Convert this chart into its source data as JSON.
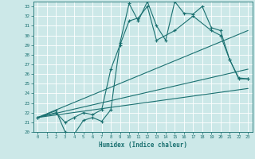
{
  "xlabel": "Humidex (Indice chaleur)",
  "xlim": [
    -0.5,
    23.5
  ],
  "ylim": [
    20,
    33.5
  ],
  "yticks": [
    20,
    21,
    22,
    23,
    24,
    25,
    26,
    27,
    28,
    29,
    30,
    31,
    32,
    33
  ],
  "xticks": [
    0,
    1,
    2,
    3,
    4,
    5,
    6,
    7,
    8,
    9,
    10,
    11,
    12,
    13,
    14,
    15,
    16,
    17,
    18,
    19,
    20,
    21,
    22,
    23
  ],
  "background_color": "#cce8e8",
  "line_color": "#1a7070",
  "grid_color": "#ffffff",
  "series": [
    {
      "x": [
        0,
        2,
        3,
        4,
        5,
        6,
        7,
        8,
        9,
        10,
        11,
        12,
        13,
        14,
        15,
        16,
        17,
        18,
        19,
        20,
        21,
        22,
        23
      ],
      "y": [
        21.5,
        22.2,
        20.0,
        19.8,
        21.2,
        21.5,
        21.1,
        22.3,
        29.2,
        33.3,
        31.5,
        33.5,
        31.0,
        29.5,
        33.5,
        32.3,
        32.2,
        33.0,
        30.8,
        30.5,
        27.5,
        25.6,
        25.5
      ],
      "marker": "+",
      "markersize": 3,
      "linewidth": 0.8
    },
    {
      "x": [
        0,
        2,
        3,
        4,
        5,
        6,
        7,
        8,
        9,
        10,
        11,
        12,
        13,
        15,
        17,
        19,
        20,
        21,
        22,
        23
      ],
      "y": [
        21.5,
        22.0,
        21.0,
        21.5,
        22.0,
        21.8,
        22.3,
        26.5,
        29.0,
        31.5,
        31.8,
        33.0,
        29.5,
        30.5,
        32.0,
        30.5,
        30.0,
        27.5,
        25.5,
        25.5
      ],
      "marker": "+",
      "markersize": 3,
      "linewidth": 0.8
    },
    {
      "x": [
        0,
        23
      ],
      "y": [
        21.5,
        30.5
      ],
      "marker": null,
      "markersize": 0,
      "linewidth": 0.8
    },
    {
      "x": [
        0,
        23
      ],
      "y": [
        21.5,
        26.5
      ],
      "marker": null,
      "markersize": 0,
      "linewidth": 0.8
    },
    {
      "x": [
        0,
        23
      ],
      "y": [
        21.5,
        24.5
      ],
      "marker": null,
      "markersize": 0,
      "linewidth": 0.8
    }
  ]
}
